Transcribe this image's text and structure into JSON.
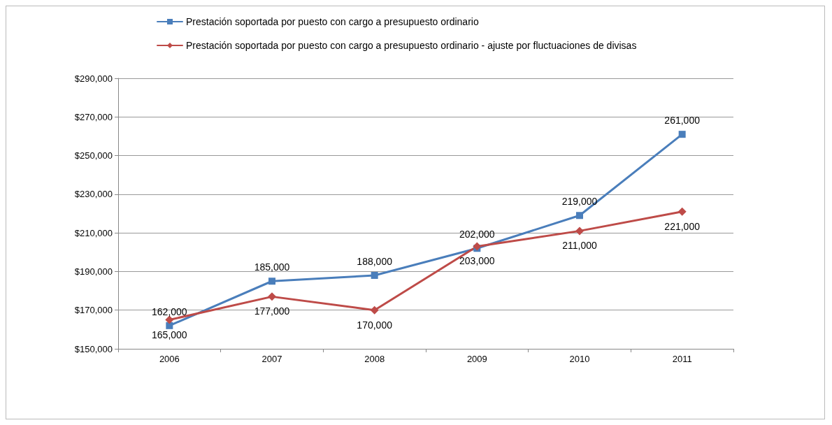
{
  "chart_data": {
    "type": "line",
    "categories": [
      "2006",
      "2007",
      "2008",
      "2009",
      "2010",
      "2011"
    ],
    "series": [
      {
        "name": "Prestación soportada por puesto con cargo a presupuesto ordinario",
        "color": "#4a7ebb",
        "values": [
          162000,
          185000,
          188000,
          202000,
          219000,
          261000
        ],
        "value_labels": [
          "162,000",
          "185,000",
          "188,000",
          "202,000",
          "219,000",
          "261,000"
        ]
      },
      {
        "name": "Prestación soportada por puesto con cargo a presupuesto ordinario - ajuste por fluctuaciones de divisas",
        "color": "#be4b48",
        "marker": "diamond",
        "values": [
          165000,
          177000,
          170000,
          203000,
          211000,
          221000
        ],
        "value_labels": [
          "165,000",
          "177,000",
          "170,000",
          "203,000",
          "211,000",
          "221,000"
        ]
      }
    ],
    "ylim": [
      150000,
      290000
    ],
    "yticks": [
      {
        "value": 150000,
        "label": "$150,000"
      },
      {
        "value": 170000,
        "label": "$170,000"
      },
      {
        "value": 190000,
        "label": "$190,000"
      },
      {
        "value": 210000,
        "label": "$210,000"
      },
      {
        "value": 230000,
        "label": "$230,000"
      },
      {
        "value": 250000,
        "label": "$250,000"
      },
      {
        "value": 270000,
        "label": "$270,000"
      },
      {
        "value": 290000,
        "label": "$290,000"
      }
    ],
    "grid": "y",
    "legend": "top",
    "marker": "square",
    "line_style": "solid"
  }
}
